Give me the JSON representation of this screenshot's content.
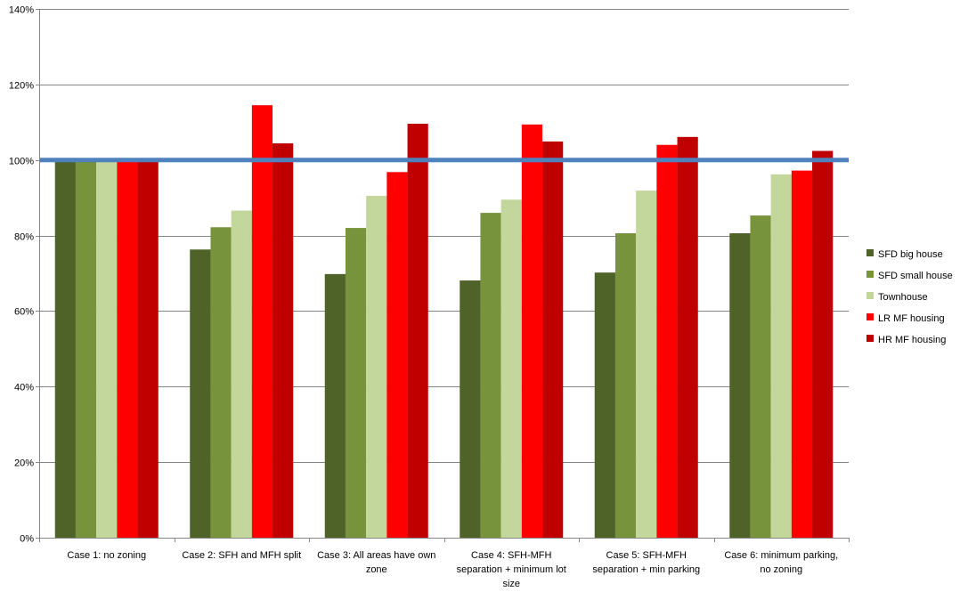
{
  "chart_data": {
    "type": "bar",
    "categories": [
      [
        "Case 1: no zoning"
      ],
      [
        "Case 2: SFH and MFH split"
      ],
      [
        "Case 3: All areas have own",
        "zone"
      ],
      [
        "Case 4: SFH-MFH",
        "separation + minimum lot",
        "size"
      ],
      [
        "Case 5: SFH-MFH",
        "separation + min parking"
      ],
      [
        "Case 6: minimum parking,",
        "no zoning"
      ]
    ],
    "series": [
      {
        "name": "SFD big house",
        "color": "#4f6228",
        "values": [
          100,
          76.3,
          69.8,
          68.1,
          70.2,
          80.6
        ]
      },
      {
        "name": "SFD small house",
        "color": "#77933c",
        "values": [
          100,
          82.2,
          82.0,
          86.0,
          80.6,
          85.3
        ]
      },
      {
        "name": "Townhouse",
        "color": "#c3d69b",
        "values": [
          100,
          86.6,
          90.5,
          89.5,
          91.9,
          96.2
        ]
      },
      {
        "name": "LR MF housing",
        "color": "#ff0000",
        "values": [
          100,
          114.5,
          96.8,
          109.4,
          104.0,
          97.2
        ]
      },
      {
        "name": "HR MF housing",
        "color": "#c00000",
        "values": [
          100,
          104.4,
          109.6,
          104.9,
          106.1,
          102.4
        ]
      }
    ],
    "reference_line": {
      "value": 100,
      "color": "#4f81bd"
    },
    "yticks": [
      "0%",
      "20%",
      "40%",
      "60%",
      "80%",
      "100%",
      "120%",
      "140%"
    ],
    "ylim": [
      0,
      140
    ],
    "grid": true,
    "legend_position": "right",
    "title": "",
    "xlabel": "",
    "ylabel": ""
  }
}
